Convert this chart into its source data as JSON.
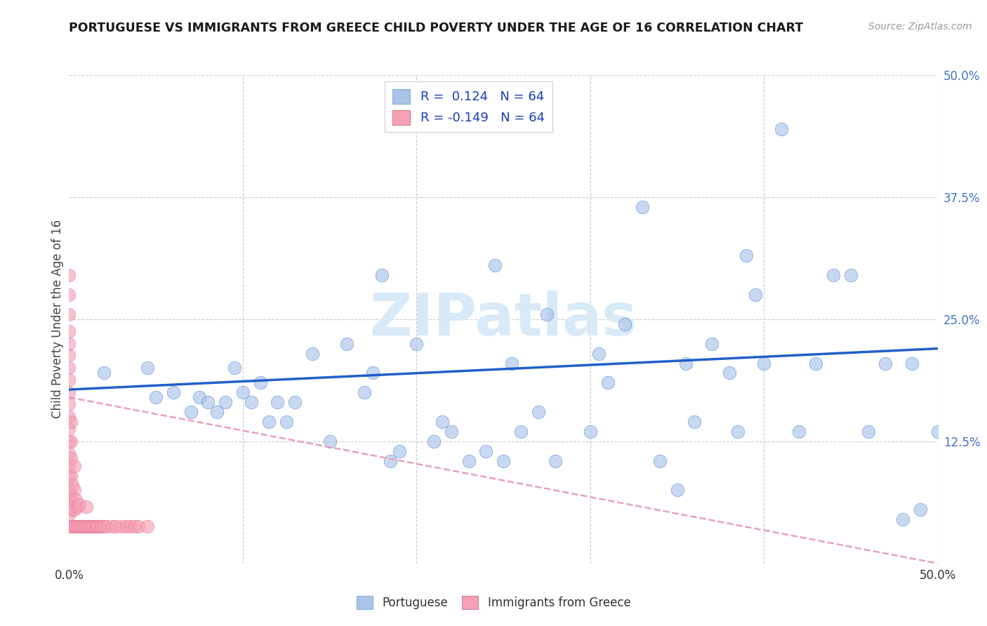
{
  "title": "PORTUGUESE VS IMMIGRANTS FROM GREECE CHILD POVERTY UNDER THE AGE OF 16 CORRELATION CHART",
  "source": "Source: ZipAtlas.com",
  "ylabel": "Child Poverty Under the Age of 16",
  "R_portuguese": 0.124,
  "N_portuguese": 64,
  "R_greece": -0.149,
  "N_greece": 64,
  "color_portuguese": "#aac4e8",
  "color_greece": "#f5a0b5",
  "line_color_portuguese": "#2060c8",
  "line_color_greece": "#e06080",
  "line_color_greece_dashed": "#e8a0b8",
  "watermark": "ZIPatlas",
  "watermark_color": "#d8eaf8",
  "xlim": [
    0.0,
    0.5
  ],
  "ylim": [
    0.0,
    0.5
  ],
  "xticks": [
    0.0,
    0.1,
    0.2,
    0.3,
    0.4,
    0.5
  ],
  "yticks": [
    0.0,
    0.125,
    0.25,
    0.375,
    0.5
  ],
  "portuguese_x": [
    0.02,
    0.045,
    0.05,
    0.06,
    0.07,
    0.075,
    0.08,
    0.085,
    0.09,
    0.095,
    0.1,
    0.105,
    0.11,
    0.115,
    0.12,
    0.125,
    0.13,
    0.14,
    0.15,
    0.16,
    0.17,
    0.175,
    0.18,
    0.185,
    0.19,
    0.2,
    0.21,
    0.215,
    0.22,
    0.23,
    0.24,
    0.245,
    0.25,
    0.255,
    0.26,
    0.27,
    0.275,
    0.28,
    0.3,
    0.305,
    0.31,
    0.32,
    0.33,
    0.34,
    0.35,
    0.355,
    0.36,
    0.37,
    0.38,
    0.385,
    0.39,
    0.395,
    0.4,
    0.41,
    0.42,
    0.43,
    0.44,
    0.45,
    0.46,
    0.47,
    0.48,
    0.485,
    0.49,
    0.5
  ],
  "portuguese_y": [
    0.195,
    0.2,
    0.17,
    0.175,
    0.155,
    0.17,
    0.165,
    0.155,
    0.165,
    0.2,
    0.175,
    0.165,
    0.185,
    0.145,
    0.165,
    0.145,
    0.165,
    0.215,
    0.125,
    0.225,
    0.175,
    0.195,
    0.295,
    0.105,
    0.115,
    0.225,
    0.125,
    0.145,
    0.135,
    0.105,
    0.115,
    0.305,
    0.105,
    0.205,
    0.135,
    0.155,
    0.255,
    0.105,
    0.135,
    0.215,
    0.185,
    0.245,
    0.365,
    0.105,
    0.075,
    0.205,
    0.145,
    0.225,
    0.195,
    0.135,
    0.315,
    0.275,
    0.205,
    0.445,
    0.135,
    0.205,
    0.295,
    0.295,
    0.135,
    0.205,
    0.045,
    0.205,
    0.055,
    0.135
  ],
  "greece_x": [
    0.0,
    0.0,
    0.0,
    0.0,
    0.0,
    0.0,
    0.0,
    0.0,
    0.0,
    0.0,
    0.0,
    0.0,
    0.0,
    0.0,
    0.0,
    0.0,
    0.0,
    0.0,
    0.0,
    0.0,
    0.001,
    0.001,
    0.001,
    0.001,
    0.001,
    0.001,
    0.001,
    0.002,
    0.002,
    0.002,
    0.003,
    0.003,
    0.003,
    0.003,
    0.004,
    0.004,
    0.005,
    0.005,
    0.006,
    0.006,
    0.007,
    0.008,
    0.009,
    0.01,
    0.01,
    0.011,
    0.012,
    0.013,
    0.014,
    0.015,
    0.016,
    0.017,
    0.018,
    0.019,
    0.02,
    0.022,
    0.025,
    0.027,
    0.03,
    0.033,
    0.035,
    0.038,
    0.04,
    0.045
  ],
  "greece_y": [
    0.038,
    0.05,
    0.063,
    0.075,
    0.088,
    0.1,
    0.113,
    0.125,
    0.138,
    0.15,
    0.163,
    0.175,
    0.188,
    0.2,
    0.213,
    0.225,
    0.238,
    0.255,
    0.275,
    0.295,
    0.038,
    0.055,
    0.07,
    0.09,
    0.108,
    0.125,
    0.145,
    0.038,
    0.058,
    0.08,
    0.038,
    0.055,
    0.075,
    0.1,
    0.038,
    0.065,
    0.038,
    0.058,
    0.038,
    0.06,
    0.038,
    0.038,
    0.038,
    0.038,
    0.058,
    0.038,
    0.038,
    0.038,
    0.038,
    0.038,
    0.038,
    0.038,
    0.038,
    0.038,
    0.038,
    0.038,
    0.038,
    0.038,
    0.038,
    0.038,
    0.038,
    0.038,
    0.038,
    0.038
  ],
  "port_trend_x": [
    0.0,
    0.5
  ],
  "port_trend_y": [
    0.178,
    0.22
  ],
  "greece_trend_x": [
    0.0,
    0.5
  ],
  "greece_trend_y": [
    0.17,
    0.0
  ],
  "scatter_size": 180,
  "scatter_alpha": 0.65,
  "grid_color": "#cccccc",
  "tick_color_right": "#4472c4",
  "background_color": "#ffffff"
}
